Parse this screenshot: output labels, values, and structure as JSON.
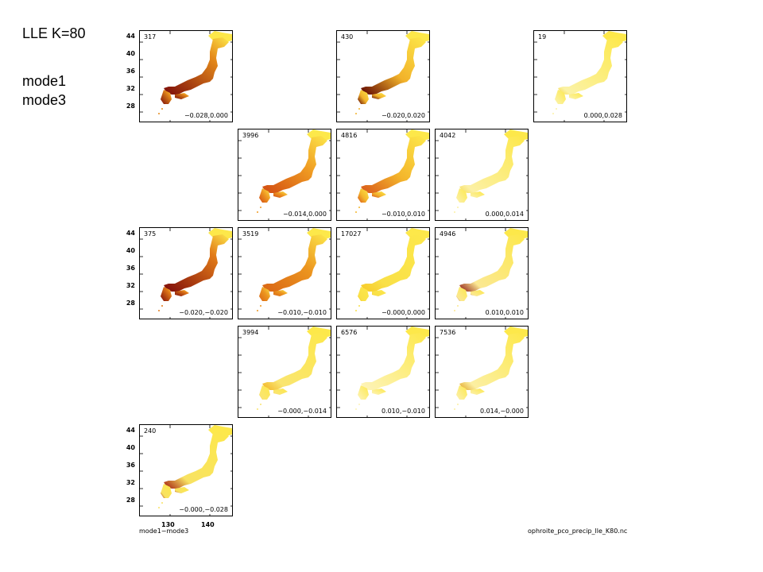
{
  "headings": {
    "title": "LLE K=80",
    "line1": "mode1",
    "line2": "mode3"
  },
  "y_tick_labels": [
    "44",
    "40",
    "36",
    "32",
    "28"
  ],
  "x_tick_labels": [
    "130",
    "140"
  ],
  "footer": {
    "left": "mode1−mode3",
    "right": "ophroite_pco_precip_lle_K80.nc"
  },
  "panels": [
    {
      "row": 0,
      "col": 0,
      "count": "317",
      "range": "−0.028,0.000",
      "color": "#e58a1a",
      "dark": "#7a0a0a",
      "shade": 0.7
    },
    {
      "row": 0,
      "col": 2,
      "count": "430",
      "range": "−0.020,0.020",
      "color": "#f2b22a",
      "dark": "#5a0000",
      "shade": 0.45
    },
    {
      "row": 0,
      "col": 4,
      "count": "19",
      "range": "0.000,0.028",
      "color": "#fbf2a6",
      "dark": "#f7d73a",
      "shade": 0.1
    },
    {
      "row": 1,
      "col": 1,
      "count": "3996",
      "range": "−0.014,0.000",
      "color": "#ef9a22",
      "dark": "#d14a12",
      "shade": 0.55
    },
    {
      "row": 1,
      "col": 2,
      "count": "4816",
      "range": "−0.010,0.010",
      "color": "#f4b62c",
      "dark": "#d8561a",
      "shade": 0.45
    },
    {
      "row": 1,
      "col": 3,
      "count": "4042",
      "range": "0.000,0.014",
      "color": "#fcf0a4",
      "dark": "#f5dc55",
      "shade": 0.12
    },
    {
      "row": 2,
      "col": 0,
      "count": "375",
      "range": "−0.020,−0.020",
      "color": "#e27b18",
      "dark": "#7d0a0a",
      "shade": 0.7
    },
    {
      "row": 2,
      "col": 1,
      "count": "3519",
      "range": "−0.010,−0.010",
      "color": "#ec9620",
      "dark": "#d96515",
      "shade": 0.55
    },
    {
      "row": 2,
      "col": 2,
      "count": "17027",
      "range": "−0.000,0.000",
      "color": "#f9e048",
      "dark": "#f7c825",
      "shade": 0.25
    },
    {
      "row": 2,
      "col": 3,
      "count": "4946",
      "range": "0.010,0.010",
      "color": "#fbe892",
      "dark": "#8a1010",
      "shade": 0.2
    },
    {
      "row": 3,
      "col": 1,
      "count": "3994",
      "range": "−0.000,−0.014",
      "color": "#fae570",
      "dark": "#f2b020",
      "shade": 0.2
    },
    {
      "row": 3,
      "col": 2,
      "count": "6576",
      "range": "0.010,−0.010",
      "color": "#fdf3b6",
      "dark": "#f8e27a",
      "shade": 0.05
    },
    {
      "row": 3,
      "col": 3,
      "count": "7536",
      "range": "0.014,−0.000",
      "color": "#fcefa2",
      "dark": "#e0a020",
      "shade": 0.15
    },
    {
      "row": 4,
      "col": 0,
      "count": "240",
      "range": "−0.000,−0.028",
      "color": "#f8e262",
      "dark": "#a0140c",
      "shade": 0.25
    }
  ]
}
